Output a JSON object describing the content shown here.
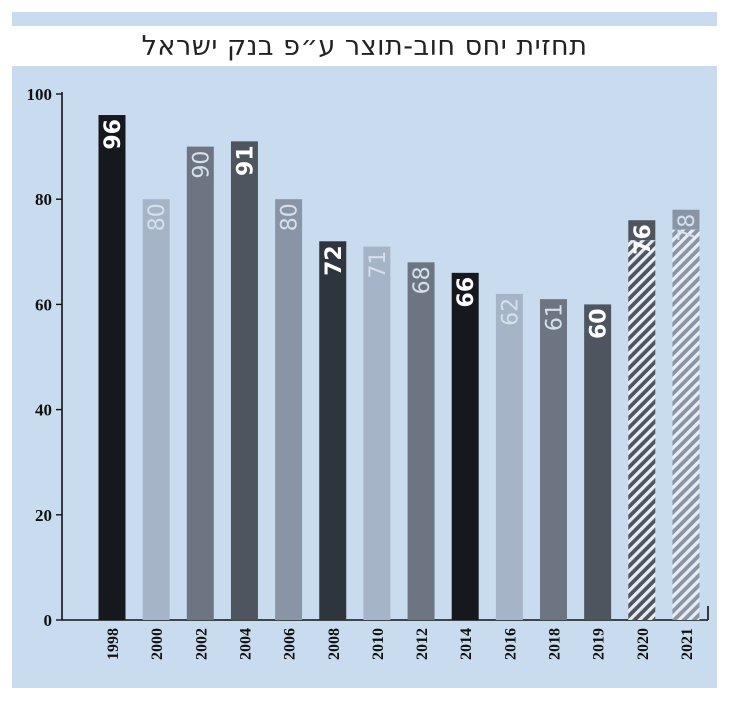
{
  "title": "תחזית יחס חוב-תוצר ע״פ בנק ישראל",
  "colors": {
    "background": "#c9dcef",
    "bar_black": "#15181d",
    "bar_dark": "#2f353d",
    "bar_slate": "#4f555f",
    "bar_mid": "#6d7583",
    "bar_gray": "#8995a6",
    "bar_light": "#a5b4c6"
  },
  "chart_data": {
    "type": "bar",
    "title": "תחזית יחס חוב-תוצר ע״פ בנק ישראל",
    "xlabel": "",
    "ylabel": "",
    "ylim": [
      0,
      100
    ],
    "yticks": [
      0,
      20,
      40,
      60,
      80,
      100
    ],
    "grid": false,
    "categories": [
      "1998",
      "2000",
      "2002",
      "2004",
      "2006",
      "2008",
      "2010",
      "2012",
      "2014",
      "2016",
      "2018",
      "2019",
      "2020",
      "2021"
    ],
    "values": [
      96,
      80,
      90,
      91,
      80,
      72,
      71,
      68,
      66,
      62,
      61,
      60,
      76,
      78
    ],
    "labels": [
      "96",
      "80",
      "90",
      "91",
      "80",
      "72",
      "71",
      "68",
      "66",
      "62",
      "61",
      "60",
      "76",
      "78"
    ],
    "bar_colors": [
      "bar_black",
      "bar_light",
      "bar_mid",
      "bar_slate",
      "bar_gray",
      "bar_dark",
      "bar_light",
      "bar_mid",
      "bar_black",
      "bar_light",
      "bar_mid",
      "bar_slate",
      "bar_slate",
      "bar_gray"
    ],
    "forecast": [
      false,
      false,
      false,
      false,
      false,
      false,
      false,
      false,
      false,
      false,
      false,
      false,
      true,
      true
    ]
  }
}
